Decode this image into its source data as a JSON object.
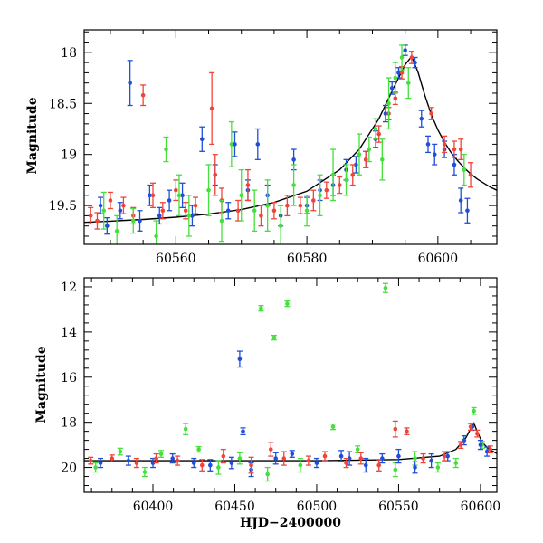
{
  "colors": {
    "blue": "#1f4fd8",
    "red": "#f0443a",
    "green": "#44e03c",
    "model": "#000000",
    "frame": "#000000"
  },
  "chart_data": [
    {
      "type": "scatter",
      "title": "",
      "xlabel": "",
      "ylabel": "Magnitude",
      "xlim": [
        60546,
        60609
      ],
      "ylim": [
        19.88,
        17.78
      ],
      "y_inverted": true,
      "xticks": [
        60560,
        60580,
        60600
      ],
      "yticks": [
        18,
        18.5,
        19,
        19.5
      ],
      "grid": false,
      "legend": "none",
      "series": [
        {
          "color_key": "blue",
          "points": [
            [
              60548.5,
              19.5,
              0.08
            ],
            [
              60549.5,
              19.7,
              0.08
            ],
            [
              60551.5,
              19.55,
              0.08
            ],
            [
              60553,
              18.3,
              0.22
            ],
            [
              60554.5,
              19.65,
              0.1
            ],
            [
              60556,
              19.4,
              0.1
            ],
            [
              60557.5,
              19.6,
              0.08
            ],
            [
              60559,
              19.45,
              0.1
            ],
            [
              60561,
              19.4,
              0.12
            ],
            [
              60562.5,
              19.6,
              0.1
            ],
            [
              60564,
              18.85,
              0.12
            ],
            [
              60566,
              19.2,
              0.1
            ],
            [
              60568,
              19.55,
              0.08
            ],
            [
              60569,
              18.9,
              0.12
            ],
            [
              60571,
              19.35,
              0.1
            ],
            [
              60572.5,
              18.9,
              0.15
            ],
            [
              60574,
              19.4,
              0.1
            ],
            [
              60576,
              19.6,
              0.1
            ],
            [
              60578,
              19.05,
              0.1
            ],
            [
              60580,
              19.5,
              0.08
            ],
            [
              60582,
              19.35,
              0.1
            ],
            [
              60584,
              19.3,
              0.1
            ],
            [
              60586,
              19.15,
              0.1
            ],
            [
              60587.5,
              19.1,
              0.08
            ],
            [
              60589,
              19.05,
              0.08
            ],
            [
              60590.5,
              18.85,
              0.08
            ],
            [
              60592,
              18.6,
              0.08
            ],
            [
              60593,
              18.35,
              0.06
            ],
            [
              60594,
              18.2,
              0.05
            ],
            [
              60595,
              17.98,
              0.05
            ],
            [
              60596.5,
              18.1,
              0.05
            ],
            [
              60597.5,
              18.65,
              0.08
            ],
            [
              60598.5,
              18.9,
              0.08
            ],
            [
              60599.5,
              19.0,
              0.1
            ],
            [
              60601,
              18.95,
              0.08
            ],
            [
              60602.5,
              19.1,
              0.1
            ],
            [
              60603.5,
              19.45,
              0.12
            ],
            [
              60604.5,
              19.55,
              0.12
            ]
          ]
        },
        {
          "color_key": "red",
          "points": [
            [
              60547,
              19.6,
              0.08
            ],
            [
              60548,
              19.65,
              0.08
            ],
            [
              60550,
              19.45,
              0.08
            ],
            [
              60552,
              19.5,
              0.08
            ],
            [
              60553.5,
              19.6,
              0.08
            ],
            [
              60555,
              18.42,
              0.1
            ],
            [
              60556.5,
              19.4,
              0.12
            ],
            [
              60558,
              19.55,
              0.08
            ],
            [
              60560,
              19.35,
              0.1
            ],
            [
              60561.5,
              19.55,
              0.08
            ],
            [
              60563,
              19.5,
              0.08
            ],
            [
              60565.5,
              18.55,
              0.35
            ],
            [
              60566,
              19.2,
              0.2
            ],
            [
              60567,
              19.45,
              0.12
            ],
            [
              60569.5,
              19.55,
              0.1
            ],
            [
              60571,
              19.3,
              0.15
            ],
            [
              60573,
              19.6,
              0.1
            ],
            [
              60575,
              19.55,
              0.08
            ],
            [
              60577,
              19.5,
              0.1
            ],
            [
              60579,
              19.5,
              0.08
            ],
            [
              60581,
              19.45,
              0.1
            ],
            [
              60583,
              19.35,
              0.08
            ],
            [
              60585,
              19.3,
              0.08
            ],
            [
              60587,
              19.2,
              0.1
            ],
            [
              60589,
              19.05,
              0.08
            ],
            [
              60591,
              18.8,
              0.08
            ],
            [
              60592.5,
              18.6,
              0.06
            ],
            [
              60593.5,
              18.45,
              0.06
            ],
            [
              60594.5,
              18.2,
              0.06
            ],
            [
              60596,
              18.05,
              0.06
            ],
            [
              60599,
              18.6,
              0.06
            ],
            [
              60601,
              18.9,
              0.08
            ],
            [
              60602.5,
              18.95,
              0.08
            ],
            [
              60603.5,
              18.95,
              0.1
            ],
            [
              60605,
              19.2,
              0.12
            ]
          ]
        },
        {
          "color_key": "green",
          "points": [
            [
              60549,
              19.55,
              0.18
            ],
            [
              60551,
              19.75,
              0.15
            ],
            [
              60553.5,
              19.65,
              0.12
            ],
            [
              60557,
              19.8,
              0.15
            ],
            [
              60558.5,
              18.95,
              0.12
            ],
            [
              60560.5,
              19.4,
              0.2
            ],
            [
              60562,
              19.6,
              0.2
            ],
            [
              60565,
              19.35,
              0.25
            ],
            [
              60567,
              19.65,
              0.2
            ],
            [
              60568.5,
              18.9,
              0.22
            ],
            [
              60570,
              19.4,
              0.25
            ],
            [
              60572,
              19.55,
              0.2
            ],
            [
              60574,
              19.5,
              0.25
            ],
            [
              60576,
              19.7,
              0.2
            ],
            [
              60578,
              19.3,
              0.2
            ],
            [
              60580,
              19.55,
              0.15
            ],
            [
              60582,
              19.4,
              0.2
            ],
            [
              60584,
              19.2,
              0.25
            ],
            [
              60586,
              19.25,
              0.15
            ],
            [
              60588,
              19.0,
              0.2
            ],
            [
              60589.5,
              18.95,
              0.12
            ],
            [
              60590.5,
              18.75,
              0.1
            ],
            [
              60591.5,
              19.05,
              0.2
            ],
            [
              60592.5,
              18.5,
              0.25
            ],
            [
              60593.5,
              18.25,
              0.15
            ],
            [
              60594.5,
              18.05,
              0.12
            ],
            [
              60595.5,
              18.3,
              0.15
            ],
            [
              60604,
              19.15,
              0.15
            ]
          ]
        }
      ],
      "model_curve": [
        [
          60546,
          19.665
        ],
        [
          60550,
          19.653
        ],
        [
          60555,
          19.636
        ],
        [
          60560,
          19.614
        ],
        [
          60565,
          19.584
        ],
        [
          60570,
          19.54
        ],
        [
          60575,
          19.47
        ],
        [
          60580,
          19.36
        ],
        [
          60585,
          19.15
        ],
        [
          60588,
          18.95
        ],
        [
          60591,
          18.65
        ],
        [
          60593,
          18.38
        ],
        [
          60595,
          18.12
        ],
        [
          60596,
          18.04
        ],
        [
          60597,
          18.2
        ],
        [
          60598,
          18.42
        ],
        [
          60599,
          18.61
        ],
        [
          60600,
          18.76
        ],
        [
          60601,
          18.88
        ],
        [
          60602,
          18.98
        ],
        [
          60603,
          19.06
        ],
        [
          60604,
          19.13
        ],
        [
          60605,
          19.19
        ],
        [
          60606,
          19.24
        ],
        [
          60607,
          19.28
        ],
        [
          60608,
          19.32
        ],
        [
          60609,
          19.35
        ]
      ]
    },
    {
      "type": "scatter",
      "title": "",
      "xlabel": "HJD−2400000",
      "ylabel": "Magnitude",
      "xlim": [
        60358,
        60610
      ],
      "ylim": [
        21.1,
        11.6
      ],
      "y_inverted": true,
      "xticks": [
        60400,
        60450,
        60500,
        60550,
        60600
      ],
      "yticks": [
        12,
        14,
        16,
        18,
        20
      ],
      "grid": false,
      "legend": "none",
      "series": [
        {
          "color_key": "green",
          "points": [
            [
              60365,
              20.0,
              0.2
            ],
            [
              60380,
              19.3,
              0.15
            ],
            [
              60395,
              20.2,
              0.2
            ],
            [
              60405,
              19.4,
              0.15
            ],
            [
              60420,
              18.3,
              0.25
            ],
            [
              60428,
              19.2,
              0.12
            ],
            [
              60440,
              20.0,
              0.3
            ],
            [
              60453,
              19.6,
              0.25
            ],
            [
              60466,
              12.95,
              0.12
            ],
            [
              60474,
              14.25,
              0.1
            ],
            [
              60482,
              12.75,
              0.12
            ],
            [
              60470,
              20.3,
              0.3
            ],
            [
              60490,
              19.9,
              0.3
            ],
            [
              60510,
              18.2,
              0.12
            ],
            [
              60525,
              19.2,
              0.15
            ],
            [
              60542,
              12.05,
              0.2
            ],
            [
              60548,
              20.1,
              0.3
            ],
            [
              60560,
              19.6,
              0.3
            ],
            [
              60574,
              20.0,
              0.2
            ],
            [
              60585,
              19.8,
              0.2
            ],
            [
              60596,
              17.5,
              0.15
            ],
            [
              60601,
              19.0,
              0.15
            ]
          ]
        },
        {
          "color_key": "blue",
          "points": [
            [
              60368,
              19.8,
              0.2
            ],
            [
              60385,
              19.7,
              0.2
            ],
            [
              60400,
              19.8,
              0.2
            ],
            [
              60412,
              19.6,
              0.2
            ],
            [
              60425,
              19.8,
              0.2
            ],
            [
              60435,
              19.9,
              0.25
            ],
            [
              60448,
              19.8,
              0.25
            ],
            [
              60453,
              15.2,
              0.35
            ],
            [
              60455,
              18.4,
              0.15
            ],
            [
              60460,
              20.1,
              0.3
            ],
            [
              60475,
              19.6,
              0.25
            ],
            [
              60485,
              19.4,
              0.15
            ],
            [
              60500,
              19.8,
              0.2
            ],
            [
              60515,
              19.5,
              0.25
            ],
            [
              60520,
              19.6,
              0.3
            ],
            [
              60530,
              19.9,
              0.3
            ],
            [
              60540,
              19.6,
              0.2
            ],
            [
              60550,
              19.5,
              0.3
            ],
            [
              60560,
              20.0,
              0.25
            ],
            [
              60570,
              19.7,
              0.3
            ],
            [
              60580,
              19.5,
              0.2
            ],
            [
              60590,
              18.8,
              0.2
            ],
            [
              60595,
              18.2,
              0.15
            ],
            [
              60600,
              19.0,
              0.2
            ],
            [
              60604,
              19.3,
              0.2
            ]
          ]
        },
        {
          "color_key": "red",
          "points": [
            [
              60362,
              19.7,
              0.15
            ],
            [
              60375,
              19.6,
              0.15
            ],
            [
              60390,
              19.8,
              0.2
            ],
            [
              60402,
              19.6,
              0.2
            ],
            [
              60415,
              19.7,
              0.2
            ],
            [
              60430,
              19.9,
              0.25
            ],
            [
              60443,
              19.5,
              0.3
            ],
            [
              60460,
              19.9,
              0.35
            ],
            [
              60472,
              19.2,
              0.3
            ],
            [
              60480,
              19.6,
              0.3
            ],
            [
              60495,
              19.7,
              0.2
            ],
            [
              60505,
              19.5,
              0.2
            ],
            [
              60518,
              19.8,
              0.2
            ],
            [
              60527,
              19.6,
              0.25
            ],
            [
              60538,
              19.9,
              0.25
            ],
            [
              60548,
              18.3,
              0.35
            ],
            [
              60555,
              18.4,
              0.15
            ],
            [
              60565,
              19.6,
              0.2
            ],
            [
              60578,
              19.5,
              0.2
            ],
            [
              60588,
              19.0,
              0.15
            ],
            [
              60594,
              18.2,
              0.15
            ],
            [
              60598,
              18.5,
              0.15
            ],
            [
              60606,
              19.2,
              0.15
            ]
          ]
        }
      ],
      "model_curve": [
        [
          60358,
          19.7
        ],
        [
          60400,
          19.7
        ],
        [
          60450,
          19.7
        ],
        [
          60500,
          19.7
        ],
        [
          60550,
          19.65
        ],
        [
          60575,
          19.5
        ],
        [
          60585,
          19.2
        ],
        [
          60591,
          18.7
        ],
        [
          60595,
          18.15
        ],
        [
          60596,
          18.04
        ],
        [
          60598,
          18.42
        ],
        [
          60601,
          18.88
        ],
        [
          60605,
          19.19
        ],
        [
          60610,
          19.38
        ]
      ]
    }
  ]
}
